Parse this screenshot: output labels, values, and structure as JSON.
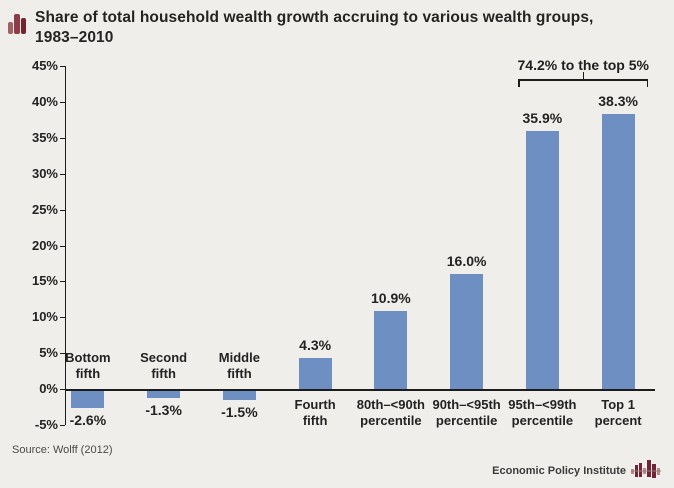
{
  "title": {
    "text": "Share of total household wealth growth accruing to various wealth groups,\n1983–2010",
    "icon": "bar-chart-icon"
  },
  "chart_data": {
    "type": "bar",
    "categories": [
      "Bottom\nfifth",
      "Second\nfifth",
      "Middle\nfifth",
      "Fourth\nfifth",
      "80th–<90th\npercentile",
      "90th–<95th\npercentile",
      "95th–<99th\npercentile",
      "Top 1\npercent"
    ],
    "values": [
      -2.6,
      -1.3,
      -1.5,
      4.3,
      10.9,
      16.0,
      35.9,
      38.3
    ],
    "value_labels": [
      "-2.6%",
      "-1.3%",
      "-1.5%",
      "4.3%",
      "10.9%",
      "16.0%",
      "35.9%",
      "38.3%"
    ],
    "ylim": [
      -5,
      45
    ],
    "ytick_step": 5,
    "ytick_labels": [
      "45%",
      "40%",
      "35%",
      "30%",
      "25%",
      "20%",
      "15%",
      "10%",
      "5%",
      "0%",
      "-5%"
    ],
    "grid": false,
    "legend": null,
    "bar_color": "#6d8fc2",
    "annotation": {
      "text": "74.2% to the top 5%",
      "from_index": 6,
      "to_index": 7
    }
  },
  "source": {
    "label": "Source: Wolff (2012)"
  },
  "footer": {
    "brand": "Economic Policy Institute",
    "logo": "epi-bars-icon"
  },
  "colors": {
    "background": "#efeeeb",
    "bar": "#6d8fc2",
    "text": "#232323",
    "maroon_dark": "#7b2d38",
    "maroon_mid": "#8d3d47",
    "maroon_light": "#a35f63"
  }
}
